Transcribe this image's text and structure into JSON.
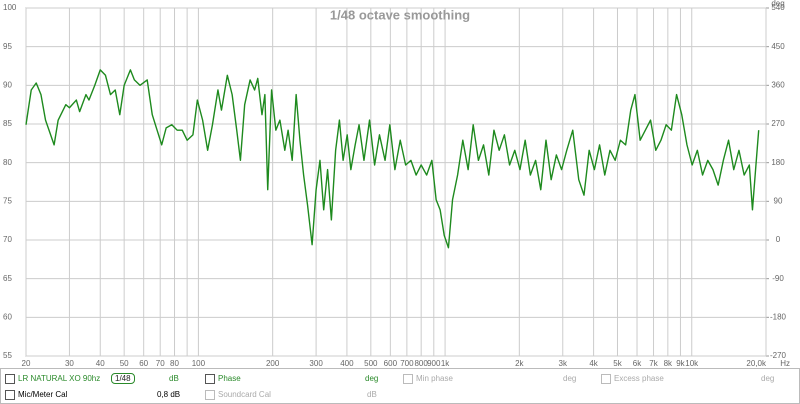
{
  "chart_data": {
    "type": "line",
    "title": "1/48 octave smoothing",
    "log_x": true,
    "grid": true,
    "x_unit": "Hz",
    "y2_label": "deg",
    "xlim": [
      20,
      20000
    ],
    "ylim": [
      55,
      100
    ],
    "y2lim": [
      -270,
      540
    ],
    "xticks": [
      20,
      30,
      40,
      50,
      60,
      70,
      80,
      100,
      200,
      300,
      400,
      500,
      600,
      700,
      800,
      900,
      {
        "value": 1000,
        "label": "1k"
      },
      {
        "value": 2000,
        "label": "2k"
      },
      {
        "value": 3000,
        "label": "3k"
      },
      {
        "value": 4000,
        "label": "4k"
      },
      {
        "value": 5000,
        "label": "5k"
      },
      {
        "value": 6000,
        "label": "6k"
      },
      {
        "value": 7000,
        "label": "7k"
      },
      {
        "value": 8000,
        "label": "8k"
      },
      {
        "value": 9000,
        "label": "9k"
      },
      {
        "value": 10000,
        "label": "10k"
      },
      {
        "value": 20000,
        "label": "20,0k"
      }
    ],
    "x_minor_ticks": [
      90
    ],
    "yticks": [
      55,
      60,
      65,
      70,
      75,
      80,
      85,
      90,
      95,
      100
    ],
    "y2ticks": [
      -270,
      -180,
      -90,
      0,
      90,
      180,
      270,
      360,
      450,
      540
    ],
    "x": [
      20,
      21,
      22,
      23,
      24,
      26,
      27,
      29,
      30,
      32,
      33,
      35,
      36,
      38,
      40,
      42,
      44,
      46,
      48,
      50,
      53,
      55,
      58,
      62,
      65,
      68,
      71,
      74,
      78,
      82,
      86,
      90,
      95,
      99,
      104,
      109,
      114,
      120,
      124,
      131,
      137,
      143,
      148,
      154,
      162,
      169,
      174,
      181,
      186,
      191,
      198,
      206,
      214,
      224,
      231,
      240,
      249,
      258,
      267,
      277,
      289,
      300,
      311,
      322,
      334,
      346,
      360,
      373,
      386,
      401,
      415,
      432,
      448,
      469,
      494,
      518,
      542,
      571,
      597,
      626,
      658,
      692,
      727,
      763,
      800,
      842,
      884,
      920,
      955,
      992,
      1032,
      1072,
      1124,
      1180,
      1240,
      1300,
      1365,
      1432,
      1504,
      1578,
      1657,
      1740,
      1826,
      1917,
      2012,
      2112,
      2217,
      2328,
      2443,
      2565,
      2692,
      2826,
      2967,
      3114,
      3293,
      3483,
      3657,
      3838,
      4030,
      4230,
      4440,
      4661,
      4893,
      5137,
      5393,
      5660,
      5885,
      6178,
      6485,
      6808,
      7146,
      7502,
      7875,
      8267,
      8678,
      9110,
      9563,
      10039,
      10538,
      11062,
      11612,
      12190,
      12796,
      13432,
      14100,
      14801,
      15537,
      16310,
      17120,
      17625,
      18147,
      18680
    ],
    "series": [
      {
        "name": "LR NATURAL XO 90hz",
        "color": "#1e8a1e",
        "values": [
          84.9,
          89.4,
          90.3,
          88.8,
          85.5,
          82.3,
          85.5,
          87.5,
          87.1,
          88.1,
          86.6,
          88.8,
          88.1,
          90.0,
          92.0,
          91.3,
          88.8,
          89.4,
          86.2,
          90.0,
          92.0,
          90.7,
          90.0,
          90.7,
          86.2,
          84.2,
          82.3,
          84.5,
          84.9,
          84.2,
          84.2,
          82.9,
          83.6,
          88.1,
          85.5,
          81.6,
          84.9,
          89.4,
          86.8,
          91.3,
          88.8,
          84.2,
          80.3,
          87.5,
          90.7,
          89.4,
          90.9,
          86.2,
          88.8,
          76.5,
          89.4,
          84.2,
          85.5,
          81.6,
          84.2,
          80.3,
          88.8,
          82.9,
          78.4,
          74.5,
          69.4,
          76.5,
          80.3,
          73.9,
          79.1,
          72.6,
          81.6,
          85.5,
          80.3,
          83.6,
          79.1,
          82.3,
          84.9,
          80.3,
          85.5,
          79.7,
          83.6,
          80.3,
          84.9,
          79.1,
          82.9,
          79.7,
          80.3,
          78.4,
          79.7,
          78.4,
          80.3,
          75.2,
          73.9,
          70.6,
          69.0,
          75.2,
          78.4,
          82.9,
          79.1,
          84.9,
          80.3,
          82.3,
          78.4,
          84.2,
          81.6,
          83.6,
          79.7,
          81.6,
          79.1,
          82.9,
          78.4,
          80.3,
          76.5,
          82.9,
          77.8,
          81.0,
          79.1,
          81.6,
          84.2,
          77.8,
          75.8,
          81.6,
          79.1,
          82.3,
          78.4,
          81.6,
          80.3,
          82.9,
          82.3,
          86.8,
          88.8,
          82.9,
          84.2,
          85.5,
          81.6,
          82.9,
          84.9,
          84.2,
          88.8,
          86.2,
          82.3,
          79.7,
          81.6,
          78.4,
          80.3,
          79.1,
          77.1,
          80.3,
          82.9,
          79.1,
          81.6,
          78.4,
          79.7,
          73.9,
          79.1,
          84.2
        ]
      }
    ]
  },
  "controls": {
    "row1": {
      "series_name": "LR NATURAL XO 90hz",
      "smoothing": "1/48",
      "unit": "dB",
      "phase": "Phase",
      "phase_unit": "deg",
      "min_phase": "Min phase",
      "min_phase_unit": "deg",
      "excess_phase": "Excess phase",
      "excess_phase_unit": "deg"
    },
    "row2": {
      "cal": "Mic/Meter Cal",
      "cal_value": "0,8 dB",
      "soundcard": "Soundcard Cal",
      "soundcard_unit": "dB"
    }
  }
}
